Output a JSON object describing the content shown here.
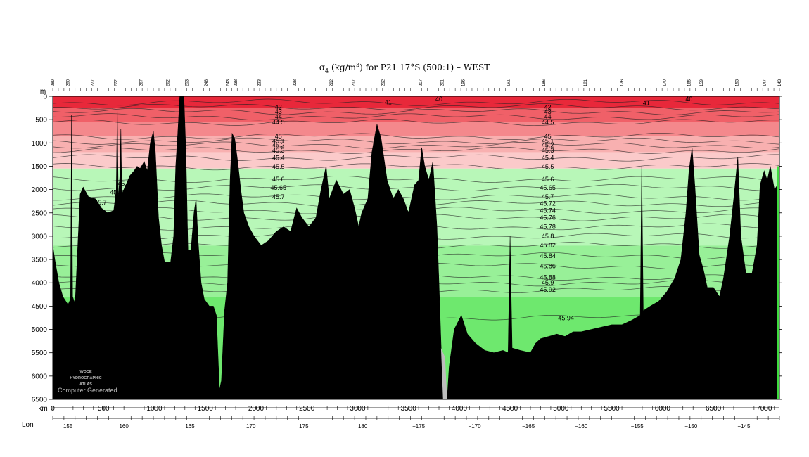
{
  "chart_data": {
    "type": "section",
    "title_prefix": "σ",
    "title_sub": "4",
    "title_unit_a": " (kg/m",
    "title_sup": "3",
    "title_unit_b": ") for P21 17°S (500:1) – WEST",
    "y_unit": "m",
    "x_unit": "km",
    "lon_label": "Lon",
    "ylim": [
      0,
      6500
    ],
    "xlim": [
      0,
      7150
    ],
    "y_ticks": [
      0,
      500,
      1000,
      1500,
      2000,
      2500,
      3000,
      3500,
      4000,
      4500,
      5000,
      5500,
      6000,
      6500
    ],
    "x_ticks": [
      0,
      500,
      1000,
      1500,
      2000,
      2500,
      3000,
      3500,
      4000,
      4500,
      5000,
      5500,
      6000,
      6500,
      7000
    ],
    "lon_ticks": [
      {
        "km": 150,
        "label": "155"
      },
      {
        "km": 700,
        "label": "160"
      },
      {
        "km": 1350,
        "label": "165"
      },
      {
        "km": 1950,
        "label": "170"
      },
      {
        "km": 2470,
        "label": "175"
      },
      {
        "km": 3050,
        "label": "180"
      },
      {
        "km": 3600,
        "label": "−175"
      },
      {
        "km": 4150,
        "label": "−170"
      },
      {
        "km": 4680,
        "label": "−165"
      },
      {
        "km": 5200,
        "label": "−160"
      },
      {
        "km": 5750,
        "label": "−155"
      },
      {
        "km": 6280,
        "label": "−150"
      },
      {
        "km": 6800,
        "label": "−145"
      }
    ],
    "stations": [
      {
        "km": 0,
        "label": "289"
      },
      {
        "km": 150,
        "label": "280"
      },
      {
        "km": 390,
        "label": "277"
      },
      {
        "km": 620,
        "label": "272"
      },
      {
        "km": 870,
        "label": "267"
      },
      {
        "km": 1130,
        "label": "262"
      },
      {
        "km": 1320,
        "label": "253"
      },
      {
        "km": 1510,
        "label": "248"
      },
      {
        "km": 1720,
        "label": "243"
      },
      {
        "km": 1800,
        "label": "238"
      },
      {
        "km": 2030,
        "label": "233"
      },
      {
        "km": 2380,
        "label": "228"
      },
      {
        "km": 2740,
        "label": "222"
      },
      {
        "km": 2960,
        "label": "217"
      },
      {
        "km": 3250,
        "label": "212"
      },
      {
        "km": 3620,
        "label": "207"
      },
      {
        "km": 3830,
        "label": "201"
      },
      {
        "km": 4040,
        "label": "196"
      },
      {
        "km": 4480,
        "label": "191"
      },
      {
        "km": 4830,
        "label": "186"
      },
      {
        "km": 5240,
        "label": "181"
      },
      {
        "km": 5600,
        "label": "176"
      },
      {
        "km": 6020,
        "label": "170"
      },
      {
        "km": 6260,
        "label": "165"
      },
      {
        "km": 6380,
        "label": "159"
      },
      {
        "km": 6730,
        "label": "153"
      },
      {
        "km": 7000,
        "label": "147"
      },
      {
        "km": 7150,
        "label": "143"
      }
    ],
    "color_bands": [
      {
        "from": 0,
        "to": 250,
        "color": "#e8283a"
      },
      {
        "from": 250,
        "to": 550,
        "color": "#f06068"
      },
      {
        "from": 550,
        "to": 850,
        "color": "#f4888c"
      },
      {
        "from": 850,
        "to": 1200,
        "color": "#f8b0b0"
      },
      {
        "from": 1200,
        "to": 1550,
        "color": "#fbcaca"
      },
      {
        "from": 1550,
        "to": 3200,
        "color": "#b8f7b8"
      },
      {
        "from": 3200,
        "to": 4300,
        "color": "#98f098"
      },
      {
        "from": 4300,
        "to": 6500,
        "color": "#6ee86e"
      }
    ],
    "contours": [
      {
        "label": "41",
        "depth": 130
      },
      {
        "label": "42",
        "depth": 230
      },
      {
        "label": "43",
        "depth": 330
      },
      {
        "label": "44",
        "depth": 440
      },
      {
        "label": "44.5",
        "depth": 560
      },
      {
        "label": "45",
        "depth": 860
      },
      {
        "label": "45.1",
        "depth": 960
      },
      {
        "label": "45.2",
        "depth": 1050
      },
      {
        "label": "45.3",
        "depth": 1160
      },
      {
        "label": "45.4",
        "depth": 1320
      },
      {
        "label": "45.5",
        "depth": 1510
      },
      {
        "label": "45.6",
        "depth": 1780
      },
      {
        "label": "45.65",
        "depth": 1960
      },
      {
        "label": "45.7",
        "depth": 2160
      },
      {
        "label": "45.72",
        "depth": 2300
      },
      {
        "label": "45.74",
        "depth": 2450
      },
      {
        "label": "45.76",
        "depth": 2600
      },
      {
        "label": "45.78",
        "depth": 2800
      },
      {
        "label": "45.8",
        "depth": 3000
      },
      {
        "label": "45.82",
        "depth": 3200
      },
      {
        "label": "45.84",
        "depth": 3420
      },
      {
        "label": "45.86",
        "depth": 3640
      },
      {
        "label": "45.88",
        "depth": 3880
      },
      {
        "label": "45.9",
        "depth": 4000
      },
      {
        "label": "45.92",
        "depth": 4150
      },
      {
        "label": "45.94",
        "depth": 4750
      }
    ],
    "extra_labels": [
      {
        "text": "40",
        "km": 3800,
        "depth": 60
      },
      {
        "text": "41",
        "km": 3300,
        "depth": 130
      },
      {
        "text": "40",
        "km": 6260,
        "depth": 60
      },
      {
        "text": "41",
        "km": 5840,
        "depth": 140
      },
      {
        "text": "45.94",
        "km": 5050,
        "depth": 4760
      },
      {
        "text": "45.6",
        "km": 700,
        "depth": 1870
      },
      {
        "text": "45.65",
        "km": 640,
        "depth": 2060
      },
      {
        "text": "45.7",
        "km": 470,
        "depth": 2280
      }
    ],
    "bottom_depth": [
      [
        0,
        3200
      ],
      [
        20,
        3500
      ],
      [
        60,
        4000
      ],
      [
        100,
        4300
      ],
      [
        150,
        4470
      ],
      [
        175,
        4350
      ],
      [
        185,
        400
      ],
      [
        195,
        4300
      ],
      [
        220,
        4450
      ],
      [
        270,
        2100
      ],
      [
        300,
        1950
      ],
      [
        350,
        2150
      ],
      [
        420,
        2200
      ],
      [
        480,
        2400
      ],
      [
        540,
        2500
      ],
      [
        600,
        2450
      ],
      [
        625,
        2000
      ],
      [
        635,
        300
      ],
      [
        645,
        2200
      ],
      [
        660,
        1700
      ],
      [
        670,
        700
      ],
      [
        680,
        2100
      ],
      [
        760,
        1700
      ],
      [
        800,
        1600
      ],
      [
        830,
        1500
      ],
      [
        860,
        1550
      ],
      [
        900,
        1400
      ],
      [
        930,
        1600
      ],
      [
        960,
        1000
      ],
      [
        990,
        750
      ],
      [
        1010,
        1200
      ],
      [
        1040,
        2600
      ],
      [
        1070,
        3200
      ],
      [
        1100,
        3550
      ],
      [
        1160,
        3550
      ],
      [
        1190,
        3000
      ],
      [
        1210,
        1500
      ],
      [
        1230,
        800
      ],
      [
        1250,
        0
      ],
      [
        1290,
        0
      ],
      [
        1310,
        1200
      ],
      [
        1330,
        3300
      ],
      [
        1360,
        3300
      ],
      [
        1390,
        2500
      ],
      [
        1410,
        2200
      ],
      [
        1430,
        3100
      ],
      [
        1460,
        4000
      ],
      [
        1490,
        4350
      ],
      [
        1540,
        4500
      ],
      [
        1580,
        4500
      ],
      [
        1610,
        4700
      ],
      [
        1640,
        6300
      ],
      [
        1660,
        6100
      ],
      [
        1690,
        4600
      ],
      [
        1720,
        4000
      ],
      [
        1745,
        1800
      ],
      [
        1765,
        800
      ],
      [
        1790,
        900
      ],
      [
        1820,
        1400
      ],
      [
        1850,
        2000
      ],
      [
        1880,
        2500
      ],
      [
        1930,
        2800
      ],
      [
        1980,
        3000
      ],
      [
        2050,
        3200
      ],
      [
        2120,
        3100
      ],
      [
        2200,
        2900
      ],
      [
        2270,
        2800
      ],
      [
        2340,
        2900
      ],
      [
        2400,
        2400
      ],
      [
        2450,
        2600
      ],
      [
        2520,
        2800
      ],
      [
        2590,
        2600
      ],
      [
        2640,
        2000
      ],
      [
        2690,
        1500
      ],
      [
        2720,
        2200
      ],
      [
        2790,
        1800
      ],
      [
        2860,
        2100
      ],
      [
        2920,
        2000
      ],
      [
        2970,
        2400
      ],
      [
        3010,
        2800
      ],
      [
        3040,
        2500
      ],
      [
        3100,
        2200
      ],
      [
        3140,
        1200
      ],
      [
        3190,
        600
      ],
      [
        3230,
        900
      ],
      [
        3290,
        1800
      ],
      [
        3350,
        2200
      ],
      [
        3400,
        2000
      ],
      [
        3450,
        2200
      ],
      [
        3500,
        2500
      ],
      [
        3560,
        1900
      ],
      [
        3600,
        1800
      ],
      [
        3630,
        1100
      ],
      [
        3660,
        1500
      ],
      [
        3700,
        1800
      ],
      [
        3740,
        1400
      ],
      [
        3780,
        2800
      ],
      [
        3800,
        4000
      ],
      [
        3820,
        5300
      ],
      [
        3840,
        6500
      ],
      [
        3880,
        6500
      ],
      [
        3900,
        5800
      ],
      [
        3950,
        5000
      ],
      [
        4020,
        4700
      ],
      [
        4080,
        5100
      ],
      [
        4160,
        5300
      ],
      [
        4250,
        5450
      ],
      [
        4340,
        5500
      ],
      [
        4430,
        5450
      ],
      [
        4480,
        5500
      ],
      [
        4500,
        3000
      ],
      [
        4520,
        5400
      ],
      [
        4600,
        5450
      ],
      [
        4700,
        5500
      ],
      [
        4750,
        5300
      ],
      [
        4800,
        5200
      ],
      [
        4880,
        5150
      ],
      [
        4960,
        5100
      ],
      [
        5040,
        5150
      ],
      [
        5120,
        5050
      ],
      [
        5200,
        5050
      ],
      [
        5300,
        5000
      ],
      [
        5400,
        4950
      ],
      [
        5500,
        4900
      ],
      [
        5600,
        4900
      ],
      [
        5700,
        4800
      ],
      [
        5780,
        4700
      ],
      [
        5795,
        1500
      ],
      [
        5810,
        4600
      ],
      [
        5880,
        4500
      ],
      [
        5960,
        4400
      ],
      [
        6040,
        4200
      ],
      [
        6120,
        3900
      ],
      [
        6180,
        3500
      ],
      [
        6230,
        2500
      ],
      [
        6260,
        1600
      ],
      [
        6290,
        1100
      ],
      [
        6320,
        2000
      ],
      [
        6360,
        3400
      ],
      [
        6400,
        3700
      ],
      [
        6440,
        4100
      ],
      [
        6500,
        4100
      ],
      [
        6560,
        4300
      ],
      [
        6600,
        3900
      ],
      [
        6660,
        3000
      ],
      [
        6700,
        2200
      ],
      [
        6740,
        1300
      ],
      [
        6770,
        3000
      ],
      [
        6820,
        3800
      ],
      [
        6880,
        3800
      ],
      [
        6930,
        3200
      ],
      [
        6960,
        1900
      ],
      [
        7000,
        1600
      ],
      [
        7030,
        1800
      ],
      [
        7060,
        1500
      ],
      [
        7100,
        2000
      ],
      [
        7150,
        1850
      ]
    ],
    "trench_gray": [
      [
        3820,
        5400
      ],
      [
        3840,
        6500
      ],
      [
        3880,
        6500
      ],
      [
        3860,
        5600
      ]
    ],
    "watermark": [
      "WOCE",
      "HYDROGRAPHIC",
      "ATLAS"
    ],
    "footer_note": "Computer Generated"
  }
}
